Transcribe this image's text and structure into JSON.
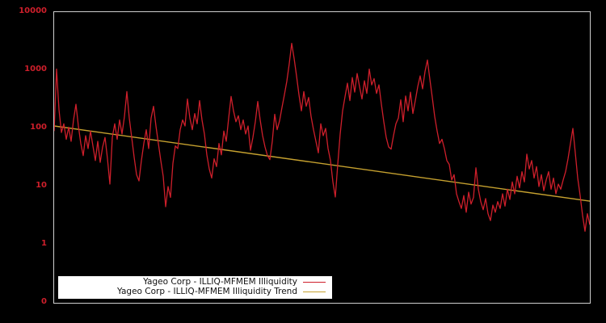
{
  "chart_data": {
    "type": "line",
    "title": "",
    "xlabel": "",
    "ylabel": "",
    "grid": false,
    "background_color": "#000000",
    "plot_border_color": "#cfcfcf",
    "x_axis": {
      "tick_labels": [],
      "labels_visible": false
    },
    "y_axis": {
      "scale": "log",
      "tick_labels": [
        "10000",
        "1000",
        "100",
        "10",
        "1",
        "0"
      ],
      "tick_label_color": "#ce1f2b",
      "log_top_exponent": 4,
      "log_bottom_exponent": -1
    },
    "legend": {
      "position": "bottom-left",
      "background": "#ffffff",
      "text_color": "#111111"
    },
    "series": [
      {
        "name": "Yageo Corp - ILLIQ-MFMEM Illiquidity",
        "color": "#ce1f2b",
        "style": "jagged-line",
        "values": [
          90,
          1050,
          210,
          85,
          120,
          65,
          105,
          60,
          140,
          260,
          110,
          55,
          34,
          75,
          45,
          90,
          50,
          28,
          60,
          26,
          48,
          70,
          30,
          11,
          70,
          120,
          65,
          140,
          80,
          160,
          430,
          150,
          70,
          32,
          16,
          12.5,
          28,
          55,
          95,
          45,
          150,
          240,
          110,
          55,
          28,
          15,
          4.5,
          10,
          6.5,
          25,
          50,
          45,
          95,
          140,
          110,
          320,
          150,
          95,
          180,
          120,
          300,
          140,
          80,
          35,
          20,
          14,
          30,
          22,
          55,
          35,
          90,
          60,
          150,
          355,
          200,
          130,
          165,
          95,
          140,
          80,
          110,
          42,
          70,
          130,
          290,
          140,
          75,
          48,
          34,
          29,
          60,
          175,
          95,
          135,
          230,
          380,
          650,
          1300,
          2900,
          1600,
          800,
          380,
          200,
          430,
          240,
          340,
          160,
          95,
          60,
          38,
          120,
          75,
          100,
          45,
          28,
          12,
          6.6,
          24,
          80,
          200,
          350,
          600,
          300,
          750,
          420,
          880,
          520,
          320,
          660,
          400,
          1050,
          560,
          720,
          400,
          560,
          260,
          130,
          70,
          48,
          44,
          75,
          120,
          150,
          310,
          130,
          360,
          200,
          420,
          180,
          300,
          520,
          800,
          480,
          950,
          1500,
          700,
          340,
          160,
          90,
          55,
          65,
          45,
          28,
          24,
          13,
          16,
          7.5,
          5.5,
          4.2,
          7,
          3.6,
          8,
          5,
          6.5,
          21,
          9,
          5.5,
          4,
          6.2,
          3.4,
          2.6,
          4.8,
          3.6,
          5.5,
          4.2,
          7.5,
          4.6,
          9,
          6,
          12,
          7.5,
          15,
          9.5,
          18,
          12,
          36,
          20,
          28,
          14,
          22,
          10,
          16,
          8.5,
          13,
          18,
          9,
          14,
          7.5,
          11,
          9,
          13,
          18,
          30,
          55,
          100,
          38,
          14,
          7,
          3.2,
          1.7,
          3.4,
          2.2
        ]
      },
      {
        "name": "Yageo Corp - ILLIQ-MFMEM Illiquidity Trend",
        "color": "#c6a12f",
        "style": "straight-trend",
        "trend": {
          "start_value": 110,
          "end_value": 5.6
        }
      }
    ]
  }
}
